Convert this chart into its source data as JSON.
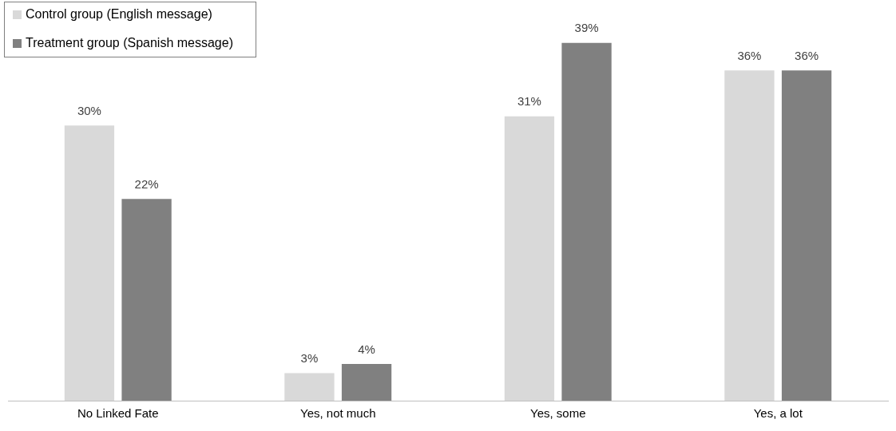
{
  "chart_data": {
    "type": "bar",
    "categories": [
      "No Linked Fate",
      "Yes, not much",
      "Yes, some",
      "Yes, a lot"
    ],
    "series": [
      {
        "name": "Control group (English message)",
        "color": "#d9d9d9",
        "values": [
          30,
          3,
          31,
          36
        ],
        "value_labels": [
          "30%",
          "3%",
          "31%",
          "36%"
        ]
      },
      {
        "name": "Treatment group (Spanish message)",
        "color": "#808080",
        "values": [
          22,
          4,
          39,
          36
        ],
        "value_labels": [
          "22%",
          "4%",
          "39%",
          "36%"
        ]
      }
    ],
    "legend": "top left",
    "grid": false
  }
}
